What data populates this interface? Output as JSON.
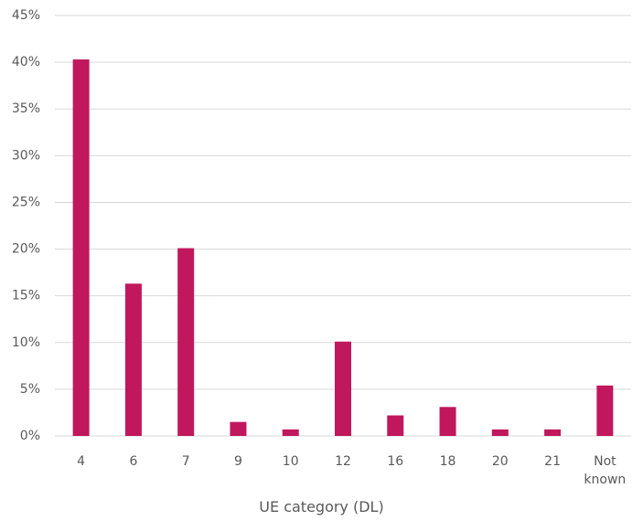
{
  "chart_data": {
    "type": "bar",
    "x_label": "UE category (DL)",
    "categories": [
      "4",
      "6",
      "7",
      "9",
      "10",
      "12",
      "16",
      "18",
      "20",
      "21",
      "Not known"
    ],
    "values": [
      40.3,
      16.3,
      20.1,
      1.5,
      0.7,
      10.1,
      2.2,
      3.1,
      0.7,
      0.7,
      5.4
    ],
    "color": "#c0175d",
    "ylim": [
      0,
      45
    ],
    "yticks": [
      {
        "value": 0,
        "label": "0%"
      },
      {
        "value": 5,
        "label": "5%"
      },
      {
        "value": 10,
        "label": "10%"
      },
      {
        "value": 15,
        "label": "15%"
      },
      {
        "value": 20,
        "label": "20%"
      },
      {
        "value": 25,
        "label": "25%"
      },
      {
        "value": 30,
        "label": "30%"
      },
      {
        "value": 35,
        "label": "35%"
      },
      {
        "value": 40,
        "label": "40%"
      },
      {
        "value": 45,
        "label": "45%"
      }
    ],
    "grid": true
  }
}
